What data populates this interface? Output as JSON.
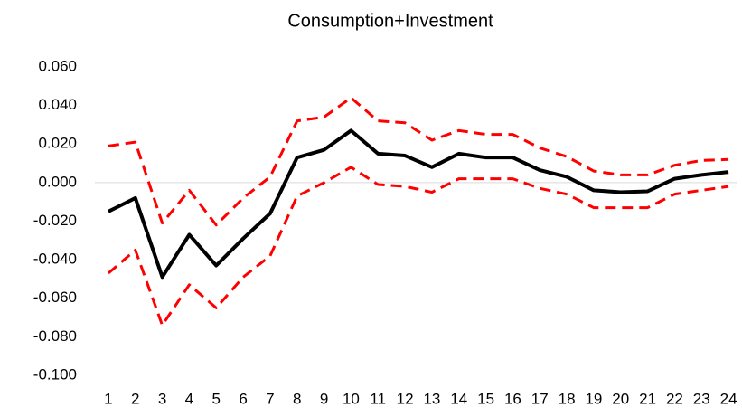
{
  "chart_data": {
    "type": "line",
    "title": "Consumption+Investment",
    "categories": [
      "1",
      "2",
      "3",
      "4",
      "5",
      "6",
      "7",
      "8",
      "9",
      "10",
      "11",
      "12",
      "13",
      "14",
      "15",
      "16",
      "17",
      "18",
      "19",
      "20",
      "21",
      "22",
      "23",
      "24"
    ],
    "series": [
      {
        "color": "#ff0000",
        "dashed": true,
        "values": [
          0.019,
          0.021,
          -0.021,
          -0.004,
          -0.022,
          -0.008,
          0.003,
          0.032,
          0.034,
          0.044,
          0.032,
          0.031,
          0.022,
          0.027,
          0.025,
          0.025,
          0.018,
          0.0135,
          0.006,
          0.004,
          0.004,
          0.009,
          0.0115,
          0.012
        ]
      },
      {
        "color": "#ff0000",
        "dashed": true,
        "values": [
          -0.047,
          -0.035,
          -0.074,
          -0.053,
          -0.065,
          -0.049,
          -0.038,
          -0.007,
          0.0,
          0.008,
          -0.001,
          -0.002,
          -0.005,
          0.002,
          0.002,
          0.002,
          -0.003,
          -0.006,
          -0.013,
          -0.013,
          -0.013,
          -0.006,
          -0.004,
          -0.002
        ]
      },
      {
        "color": "#000000",
        "dashed": false,
        "values": [
          -0.015,
          -0.008,
          -0.049,
          -0.027,
          -0.043,
          -0.029,
          -0.016,
          0.013,
          0.017,
          0.027,
          0.015,
          0.014,
          0.008,
          0.015,
          0.013,
          0.013,
          0.0065,
          0.003,
          -0.004,
          -0.005,
          -0.0045,
          0.002,
          0.004,
          0.0055
        ]
      }
    ],
    "ylim": [
      -0.1,
      0.06
    ],
    "yticks": [
      {
        "value": -0.1,
        "label": "-0.100"
      },
      {
        "value": -0.08,
        "label": "-0.080"
      },
      {
        "value": -0.06,
        "label": "-0.060"
      },
      {
        "value": -0.04,
        "label": "-0.040"
      },
      {
        "value": -0.02,
        "label": "-0.020"
      },
      {
        "value": 0,
        "label": "0.000"
      },
      {
        "value": 0.02,
        "label": "0.020"
      },
      {
        "value": 0.04,
        "label": "0.040"
      },
      {
        "value": 0.06,
        "label": "0.060"
      }
    ],
    "zero_line": true
  }
}
